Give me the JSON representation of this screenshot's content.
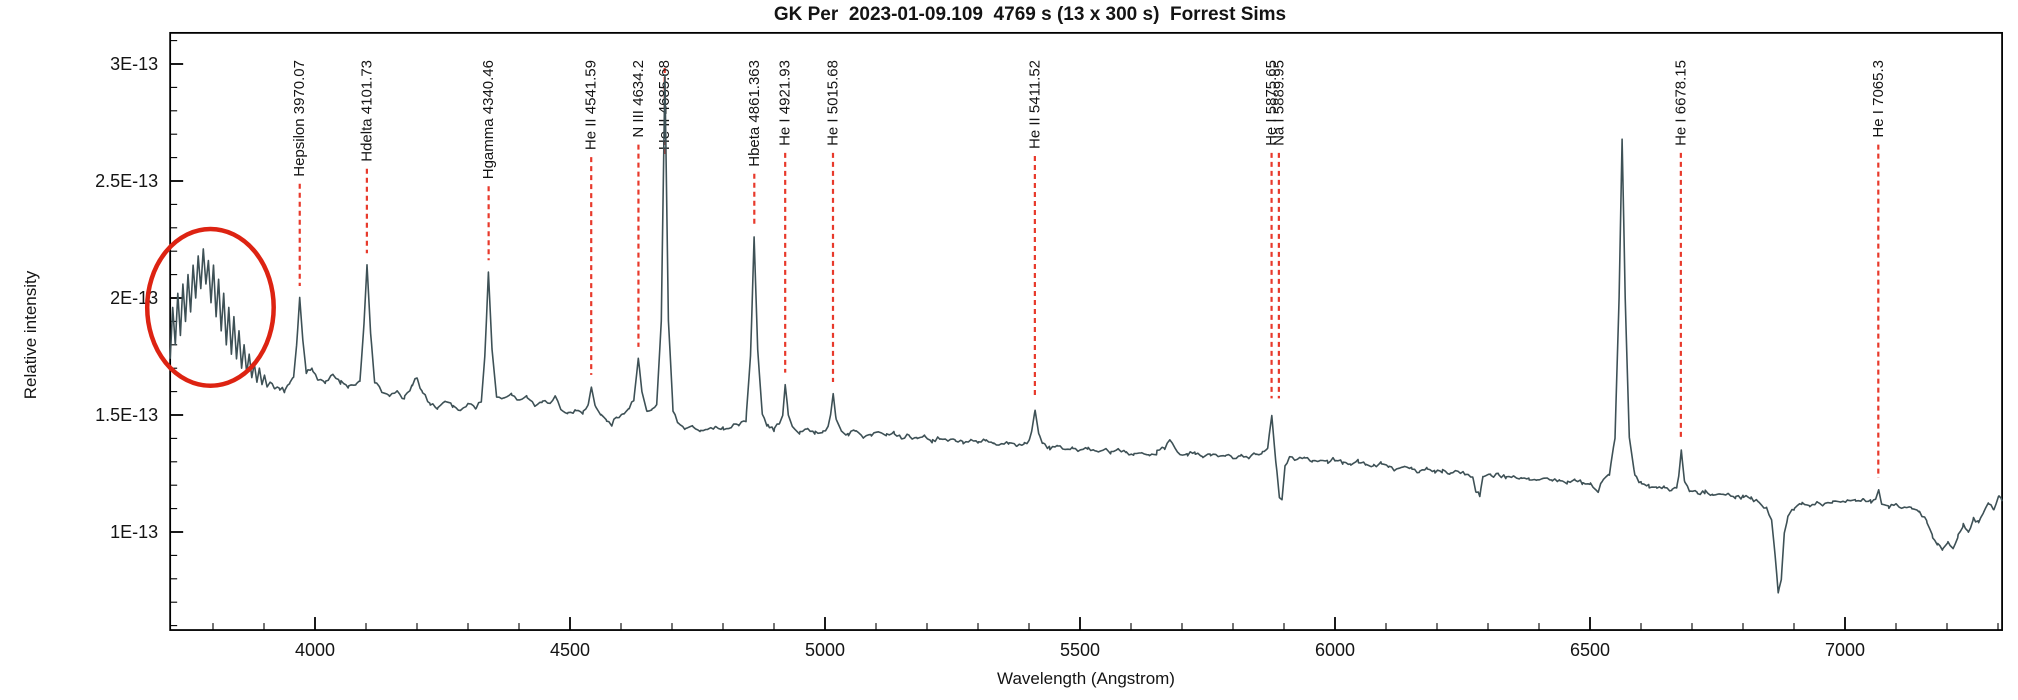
{
  "title": "GK Per  2023-01-09.109  4769 s (13 x 300 s)  Forrest Sims",
  "axes": {
    "x_label": "Wavelength (Angstrom)",
    "y_label": "Relative intensity"
  },
  "colors": {
    "spectrum_line": "#3e5156",
    "marker_dash": "#e8392b",
    "highlight_ellipse": "#dd2312",
    "frame": "#000000",
    "text": "#141414"
  },
  "chart_data": {
    "type": "line",
    "title": "GK Per 2023-01-09.109 4769 s (13 x 300 s) Forrest Sims",
    "xlabel": "Wavelength (Angstrom)",
    "ylabel": "Relative intensity",
    "x_range": [
      3716,
      7308
    ],
    "y_range_e13": [
      0.581,
      3.133
    ],
    "y_units": "intensity values in 1e-13 (relative flux)",
    "grid": false,
    "x_tick_labels": [
      {
        "v": 4000,
        "t": "4000"
      },
      {
        "v": 4500,
        "t": "4500"
      },
      {
        "v": 5000,
        "t": "5000"
      },
      {
        "v": 5500,
        "t": "5500"
      },
      {
        "v": 6000,
        "t": "6000"
      },
      {
        "v": 6500,
        "t": "6500"
      },
      {
        "v": 7000,
        "t": "7000"
      }
    ],
    "x_minor_step": 100,
    "y_tick_labels": [
      {
        "v": 1.0,
        "t": "1E-13"
      },
      {
        "v": 1.5,
        "t": "1.5E-13"
      },
      {
        "v": 2.0,
        "t": "2E-13"
      },
      {
        "v": 2.5,
        "t": "2.5E-13"
      },
      {
        "v": 3.0,
        "t": "3E-13"
      }
    ],
    "y_minor_step": 0.1,
    "line_markers": [
      {
        "label": "Hepsilon 3970.07",
        "wavelength": 3970.07,
        "peak_intensity_e13": 2.0
      },
      {
        "label": "Hdelta 4101.73",
        "wavelength": 4101.73,
        "peak_intensity_e13": 2.14
      },
      {
        "label": "Hgamma 4340.46",
        "wavelength": 4340.46,
        "peak_intensity_e13": 2.11
      },
      {
        "label": "He II 4541.59",
        "wavelength": 4541.59,
        "peak_intensity_e13": 1.62
      },
      {
        "label": "N III 4634.2",
        "wavelength": 4634.2,
        "peak_intensity_e13": 1.74
      },
      {
        "label": "He II 4685.68",
        "wavelength": 4685.68,
        "peak_intensity_e13": 2.95
      },
      {
        "label": "Hbeta 4861.363",
        "wavelength": 4861.363,
        "peak_intensity_e13": 2.26
      },
      {
        "label": "He I 4921.93",
        "wavelength": 4921.93,
        "peak_intensity_e13": 1.63
      },
      {
        "label": "He I 5015.68",
        "wavelength": 5015.68,
        "peak_intensity_e13": 1.59
      },
      {
        "label": "He II 5411.52",
        "wavelength": 5411.52,
        "peak_intensity_e13": 1.52
      },
      {
        "label": "He I 5875.65",
        "wavelength": 5875.65,
        "peak_intensity_e13": 1.52
      },
      {
        "label": "Na I 5889.95",
        "wavelength": 5889.95,
        "peak_intensity_e13": 1.52
      },
      {
        "label": "He I 6678.15",
        "wavelength": 6678.15,
        "peak_intensity_e13": 1.35
      },
      {
        "label": "He I 7065.3",
        "wavelength": 7065.3,
        "peak_intensity_e13": 1.18
      }
    ],
    "unlabeled_features": [
      {
        "label": "H-alpha emission peak (unlabeled)",
        "wavelength": 6563,
        "peak_intensity_e13": 2.68
      },
      {
        "label": "telluric absorption dip (unlabeled)",
        "wavelength": 6869,
        "min_intensity_e13": 0.74
      }
    ],
    "annotations": [
      {
        "type": "ellipse",
        "label": "red circle around noisy blue-end hump",
        "wavelength_center": 3795,
        "intensity_center_e13": 1.96,
        "wavelength_halfwidth": 124,
        "intensity_halfheight_e13": 0.335
      }
    ],
    "spectrum_points": [
      [
        3716,
        1.74
      ],
      [
        3721,
        1.96
      ],
      [
        3726,
        1.8
      ],
      [
        3731,
        2.02
      ],
      [
        3736,
        1.84
      ],
      [
        3741,
        2.06
      ],
      [
        3746,
        1.9
      ],
      [
        3751,
        2.1
      ],
      [
        3756,
        1.94
      ],
      [
        3761,
        2.14
      ],
      [
        3766,
        2.0
      ],
      [
        3771,
        2.18
      ],
      [
        3776,
        2.04
      ],
      [
        3781,
        2.21
      ],
      [
        3786,
        2.06
      ],
      [
        3791,
        2.16
      ],
      [
        3796,
        1.98
      ],
      [
        3801,
        2.14
      ],
      [
        3806,
        1.92
      ],
      [
        3811,
        2.08
      ],
      [
        3816,
        1.86
      ],
      [
        3821,
        2.02
      ],
      [
        3826,
        1.8
      ],
      [
        3831,
        1.96
      ],
      [
        3836,
        1.76
      ],
      [
        3841,
        1.92
      ],
      [
        3846,
        1.74
      ],
      [
        3851,
        1.86
      ],
      [
        3856,
        1.7
      ],
      [
        3861,
        1.8
      ],
      [
        3866,
        1.68
      ],
      [
        3871,
        1.76
      ],
      [
        3876,
        1.66
      ],
      [
        3881,
        1.72
      ],
      [
        3886,
        1.64
      ],
      [
        3891,
        1.7
      ],
      [
        3896,
        1.63
      ],
      [
        3901,
        1.67
      ],
      [
        3906,
        1.62
      ],
      [
        3912,
        1.64
      ],
      [
        3920,
        1.61
      ],
      [
        3930,
        1.62
      ],
      [
        3940,
        1.6
      ],
      [
        3950,
        1.63
      ],
      [
        3958,
        1.66
      ],
      [
        3964,
        1.8
      ],
      [
        3970,
        2.0
      ],
      [
        3976,
        1.82
      ],
      [
        3983,
        1.68
      ],
      [
        3994,
        1.7
      ],
      [
        4005,
        1.66
      ],
      [
        4020,
        1.64
      ],
      [
        4035,
        1.67
      ],
      [
        4050,
        1.64
      ],
      [
        4065,
        1.62
      ],
      [
        4080,
        1.63
      ],
      [
        4088,
        1.64
      ],
      [
        4095,
        1.85
      ],
      [
        4102,
        2.14
      ],
      [
        4109,
        1.85
      ],
      [
        4117,
        1.64
      ],
      [
        4130,
        1.6
      ],
      [
        4145,
        1.58
      ],
      [
        4160,
        1.6
      ],
      [
        4175,
        1.57
      ],
      [
        4190,
        1.62
      ],
      [
        4200,
        1.66
      ],
      [
        4210,
        1.6
      ],
      [
        4225,
        1.55
      ],
      [
        4240,
        1.53
      ],
      [
        4255,
        1.56
      ],
      [
        4270,
        1.54
      ],
      [
        4285,
        1.52
      ],
      [
        4300,
        1.55
      ],
      [
        4315,
        1.53
      ],
      [
        4326,
        1.56
      ],
      [
        4333,
        1.75
      ],
      [
        4340,
        2.11
      ],
      [
        4347,
        1.78
      ],
      [
        4356,
        1.58
      ],
      [
        4370,
        1.57
      ],
      [
        4385,
        1.59
      ],
      [
        4400,
        1.56
      ],
      [
        4415,
        1.58
      ],
      [
        4430,
        1.54
      ],
      [
        4445,
        1.56
      ],
      [
        4460,
        1.55
      ],
      [
        4471,
        1.58
      ],
      [
        4482,
        1.52
      ],
      [
        4495,
        1.5
      ],
      [
        4510,
        1.52
      ],
      [
        4525,
        1.51
      ],
      [
        4535,
        1.54
      ],
      [
        4542,
        1.62
      ],
      [
        4549,
        1.54
      ],
      [
        4560,
        1.5
      ],
      [
        4572,
        1.48
      ],
      [
        4582,
        1.46
      ],
      [
        4592,
        1.49
      ],
      [
        4605,
        1.51
      ],
      [
        4615,
        1.53
      ],
      [
        4625,
        1.56
      ],
      [
        4634,
        1.74
      ],
      [
        4641,
        1.6
      ],
      [
        4650,
        1.52
      ],
      [
        4660,
        1.52
      ],
      [
        4670,
        1.55
      ],
      [
        4679,
        1.9
      ],
      [
        4686,
        2.95
      ],
      [
        4693,
        1.9
      ],
      [
        4702,
        1.52
      ],
      [
        4712,
        1.46
      ],
      [
        4725,
        1.44
      ],
      [
        4740,
        1.45
      ],
      [
        4755,
        1.43
      ],
      [
        4770,
        1.44
      ],
      [
        4785,
        1.45
      ],
      [
        4800,
        1.44
      ],
      [
        4815,
        1.45
      ],
      [
        4830,
        1.46
      ],
      [
        4845,
        1.48
      ],
      [
        4854,
        1.75
      ],
      [
        4861,
        2.26
      ],
      [
        4868,
        1.78
      ],
      [
        4877,
        1.5
      ],
      [
        4888,
        1.45
      ],
      [
        4900,
        1.44
      ],
      [
        4910,
        1.46
      ],
      [
        4917,
        1.5
      ],
      [
        4922,
        1.63
      ],
      [
        4928,
        1.5
      ],
      [
        4937,
        1.44
      ],
      [
        4950,
        1.43
      ],
      [
        4965,
        1.44
      ],
      [
        4980,
        1.42
      ],
      [
        4995,
        1.43
      ],
      [
        5006,
        1.45
      ],
      [
        5011,
        1.5
      ],
      [
        5016,
        1.59
      ],
      [
        5022,
        1.48
      ],
      [
        5032,
        1.43
      ],
      [
        5045,
        1.42
      ],
      [
        5060,
        1.43
      ],
      [
        5075,
        1.41
      ],
      [
        5090,
        1.42
      ],
      [
        5105,
        1.43
      ],
      [
        5120,
        1.41
      ],
      [
        5135,
        1.42
      ],
      [
        5150,
        1.4
      ],
      [
        5165,
        1.41
      ],
      [
        5180,
        1.4
      ],
      [
        5195,
        1.41
      ],
      [
        5210,
        1.39
      ],
      [
        5225,
        1.4
      ],
      [
        5240,
        1.39
      ],
      [
        5255,
        1.4
      ],
      [
        5270,
        1.38
      ],
      [
        5285,
        1.39
      ],
      [
        5300,
        1.38
      ],
      [
        5315,
        1.39
      ],
      [
        5330,
        1.38
      ],
      [
        5345,
        1.37
      ],
      [
        5360,
        1.38
      ],
      [
        5375,
        1.37
      ],
      [
        5390,
        1.38
      ],
      [
        5400,
        1.39
      ],
      [
        5405,
        1.43
      ],
      [
        5412,
        1.52
      ],
      [
        5419,
        1.42
      ],
      [
        5428,
        1.37
      ],
      [
        5440,
        1.36
      ],
      [
        5455,
        1.37
      ],
      [
        5470,
        1.35
      ],
      [
        5485,
        1.36
      ],
      [
        5500,
        1.35
      ],
      [
        5515,
        1.36
      ],
      [
        5530,
        1.34
      ],
      [
        5545,
        1.35
      ],
      [
        5560,
        1.34
      ],
      [
        5575,
        1.35
      ],
      [
        5590,
        1.34
      ],
      [
        5605,
        1.33
      ],
      [
        5620,
        1.34
      ],
      [
        5635,
        1.33
      ],
      [
        5650,
        1.34
      ],
      [
        5665,
        1.36
      ],
      [
        5676,
        1.4
      ],
      [
        5686,
        1.36
      ],
      [
        5695,
        1.33
      ],
      [
        5710,
        1.33
      ],
      [
        5725,
        1.34
      ],
      [
        5740,
        1.32
      ],
      [
        5755,
        1.33
      ],
      [
        5770,
        1.32
      ],
      [
        5785,
        1.33
      ],
      [
        5800,
        1.32
      ],
      [
        5815,
        1.33
      ],
      [
        5830,
        1.32
      ],
      [
        5845,
        1.33
      ],
      [
        5858,
        1.34
      ],
      [
        5868,
        1.36
      ],
      [
        5876,
        1.5
      ],
      [
        5884,
        1.3
      ],
      [
        5891,
        1.15
      ],
      [
        5896,
        1.14
      ],
      [
        5902,
        1.28
      ],
      [
        5910,
        1.32
      ],
      [
        5925,
        1.31
      ],
      [
        5940,
        1.32
      ],
      [
        5955,
        1.3
      ],
      [
        5970,
        1.31
      ],
      [
        5985,
        1.3
      ],
      [
        6000,
        1.31
      ],
      [
        6015,
        1.3
      ],
      [
        6030,
        1.29
      ],
      [
        6045,
        1.3
      ],
      [
        6060,
        1.29
      ],
      [
        6075,
        1.28
      ],
      [
        6090,
        1.29
      ],
      [
        6105,
        1.28
      ],
      [
        6120,
        1.27
      ],
      [
        6135,
        1.28
      ],
      [
        6150,
        1.27
      ],
      [
        6165,
        1.26
      ],
      [
        6180,
        1.27
      ],
      [
        6195,
        1.26
      ],
      [
        6210,
        1.26
      ],
      [
        6225,
        1.25
      ],
      [
        6240,
        1.26
      ],
      [
        6255,
        1.25
      ],
      [
        6270,
        1.24
      ],
      [
        6277,
        1.17
      ],
      [
        6284,
        1.16
      ],
      [
        6290,
        1.24
      ],
      [
        6305,
        1.24
      ],
      [
        6320,
        1.25
      ],
      [
        6335,
        1.23
      ],
      [
        6350,
        1.24
      ],
      [
        6365,
        1.23
      ],
      [
        6380,
        1.23
      ],
      [
        6395,
        1.22
      ],
      [
        6410,
        1.23
      ],
      [
        6425,
        1.22
      ],
      [
        6440,
        1.22
      ],
      [
        6455,
        1.21
      ],
      [
        6470,
        1.22
      ],
      [
        6485,
        1.21
      ],
      [
        6500,
        1.21
      ],
      [
        6516,
        1.17
      ],
      [
        6524,
        1.22
      ],
      [
        6538,
        1.25
      ],
      [
        6549,
        1.4
      ],
      [
        6557,
        2.0
      ],
      [
        6563,
        2.68
      ],
      [
        6569,
        2.0
      ],
      [
        6577,
        1.4
      ],
      [
        6588,
        1.24
      ],
      [
        6600,
        1.21
      ],
      [
        6615,
        1.2
      ],
      [
        6630,
        1.19
      ],
      [
        6645,
        1.19
      ],
      [
        6660,
        1.18
      ],
      [
        6670,
        1.19
      ],
      [
        6674,
        1.24
      ],
      [
        6679,
        1.35
      ],
      [
        6685,
        1.22
      ],
      [
        6695,
        1.18
      ],
      [
        6710,
        1.17
      ],
      [
        6725,
        1.17
      ],
      [
        6740,
        1.16
      ],
      [
        6755,
        1.17
      ],
      [
        6770,
        1.16
      ],
      [
        6785,
        1.15
      ],
      [
        6800,
        1.15
      ],
      [
        6815,
        1.14
      ],
      [
        6830,
        1.13
      ],
      [
        6845,
        1.1
      ],
      [
        6856,
        1.05
      ],
      [
        6863,
        0.9
      ],
      [
        6869,
        0.74
      ],
      [
        6875,
        0.8
      ],
      [
        6881,
        1.0
      ],
      [
        6888,
        1.07
      ],
      [
        6900,
        1.1
      ],
      [
        6915,
        1.12
      ],
      [
        6930,
        1.11
      ],
      [
        6945,
        1.13
      ],
      [
        6960,
        1.12
      ],
      [
        6975,
        1.13
      ],
      [
        6990,
        1.13
      ],
      [
        7005,
        1.14
      ],
      [
        7020,
        1.13
      ],
      [
        7035,
        1.14
      ],
      [
        7050,
        1.13
      ],
      [
        7060,
        1.14
      ],
      [
        7066,
        1.18
      ],
      [
        7072,
        1.12
      ],
      [
        7085,
        1.11
      ],
      [
        7100,
        1.12
      ],
      [
        7115,
        1.1
      ],
      [
        7130,
        1.11
      ],
      [
        7145,
        1.09
      ],
      [
        7160,
        1.05
      ],
      [
        7172,
        0.98
      ],
      [
        7182,
        0.95
      ],
      [
        7192,
        0.93
      ],
      [
        7202,
        0.95
      ],
      [
        7212,
        0.93
      ],
      [
        7222,
        0.98
      ],
      [
        7232,
        1.03
      ],
      [
        7242,
        1.0
      ],
      [
        7252,
        1.06
      ],
      [
        7262,
        1.04
      ],
      [
        7272,
        1.09
      ],
      [
        7282,
        1.12
      ],
      [
        7292,
        1.1
      ],
      [
        7302,
        1.15
      ],
      [
        7308,
        1.13
      ]
    ]
  }
}
